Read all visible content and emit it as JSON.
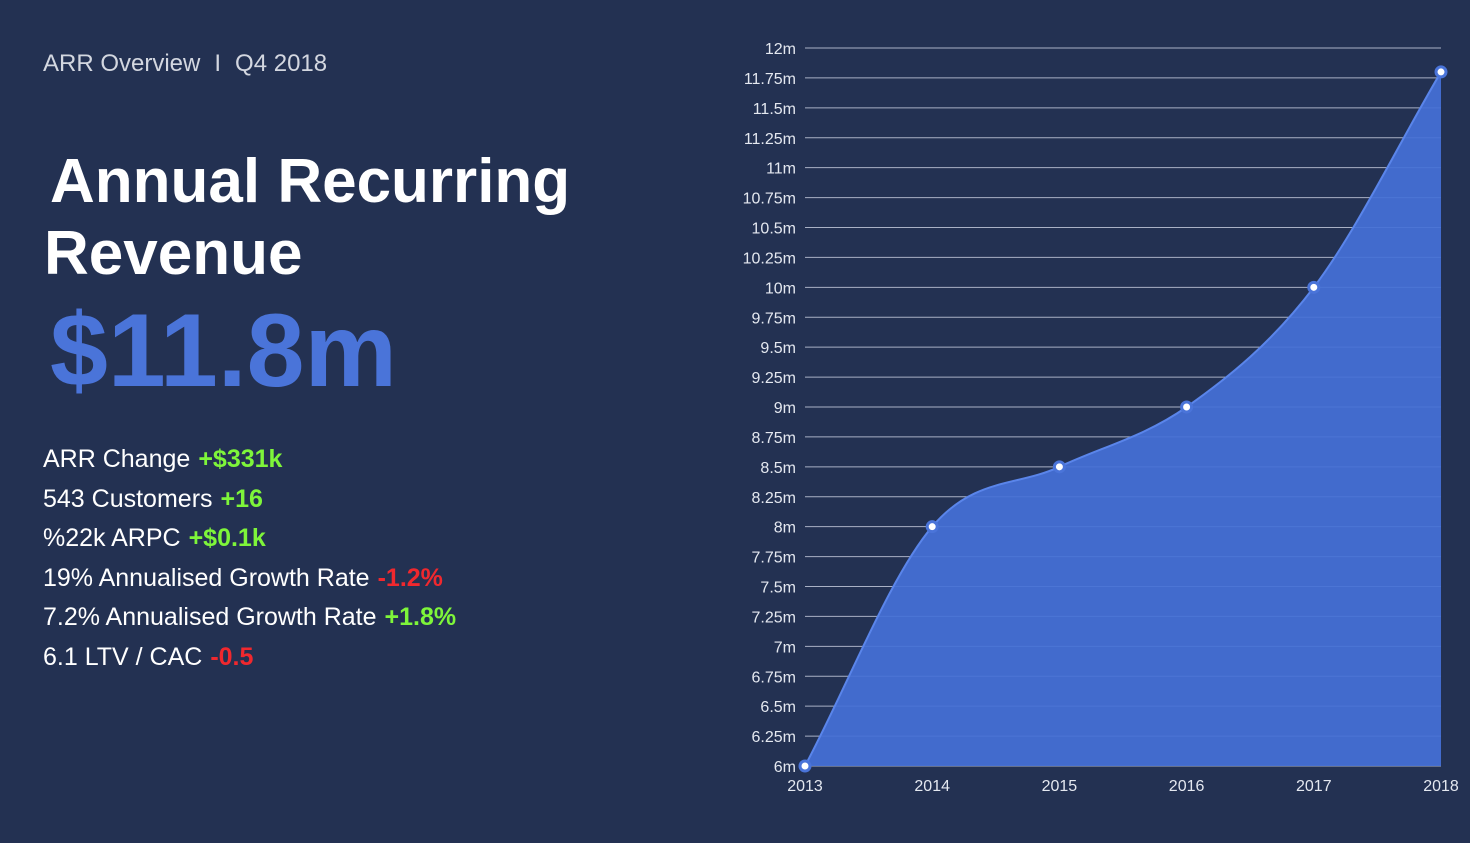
{
  "header": {
    "section": "ARR Overview",
    "separator": "I",
    "period": "Q4 2018"
  },
  "headline": {
    "line1": "Annual Recurring",
    "line2": "Revenue",
    "value": "$11.8m"
  },
  "metrics": [
    {
      "label": "ARR Change",
      "delta": "+$331k",
      "trend": "positive"
    },
    {
      "label": "543 Customers",
      "delta": "+16",
      "trend": "positive"
    },
    {
      "label": "%22k ARPC",
      "delta": "+$0.1k",
      "trend": "positive"
    },
    {
      "label": "19% Annualised Growth Rate",
      "delta": "-1.2%",
      "trend": "negative"
    },
    {
      "label": "7.2% Annualised Growth Rate",
      "delta": "+1.8%",
      "trend": "positive"
    },
    {
      "label": "6.1 LTV / CAC",
      "delta": "-0.5",
      "trend": "negative"
    }
  ],
  "colors": {
    "background": "#233152",
    "accent": "#4a74d9",
    "area_fill": "#4570d6",
    "positive": "#7ef53a",
    "negative": "#f0282e"
  },
  "chart_data": {
    "type": "area",
    "x": [
      "2013",
      "2014",
      "2015",
      "2016",
      "2017",
      "2018"
    ],
    "values": [
      6.0,
      8.0,
      8.5,
      9.0,
      10.0,
      11.8
    ],
    "ylim": [
      6,
      12
    ],
    "yticks": [
      6,
      6.25,
      6.5,
      6.75,
      7,
      7.25,
      7.5,
      7.75,
      8,
      8.25,
      8.5,
      8.75,
      9,
      9.25,
      9.5,
      9.75,
      10,
      10.25,
      10.5,
      10.75,
      11,
      11.25,
      11.5,
      11.75,
      12
    ],
    "ytick_labels": [
      "6m",
      "6.25m",
      "6.5m",
      "6.75m",
      "7m",
      "7.25m",
      "7.5m",
      "7.75m",
      "8m",
      "8.25m",
      "8.5m",
      "8.75m",
      "9m",
      "9.25m",
      "9.5m",
      "9.75m",
      "10m",
      "10.25m",
      "10.5m",
      "10.75m",
      "11m",
      "11.25m",
      "11.5m",
      "11.75m",
      "12m"
    ],
    "grid": true,
    "title": "",
    "xlabel": "",
    "ylabel": ""
  }
}
